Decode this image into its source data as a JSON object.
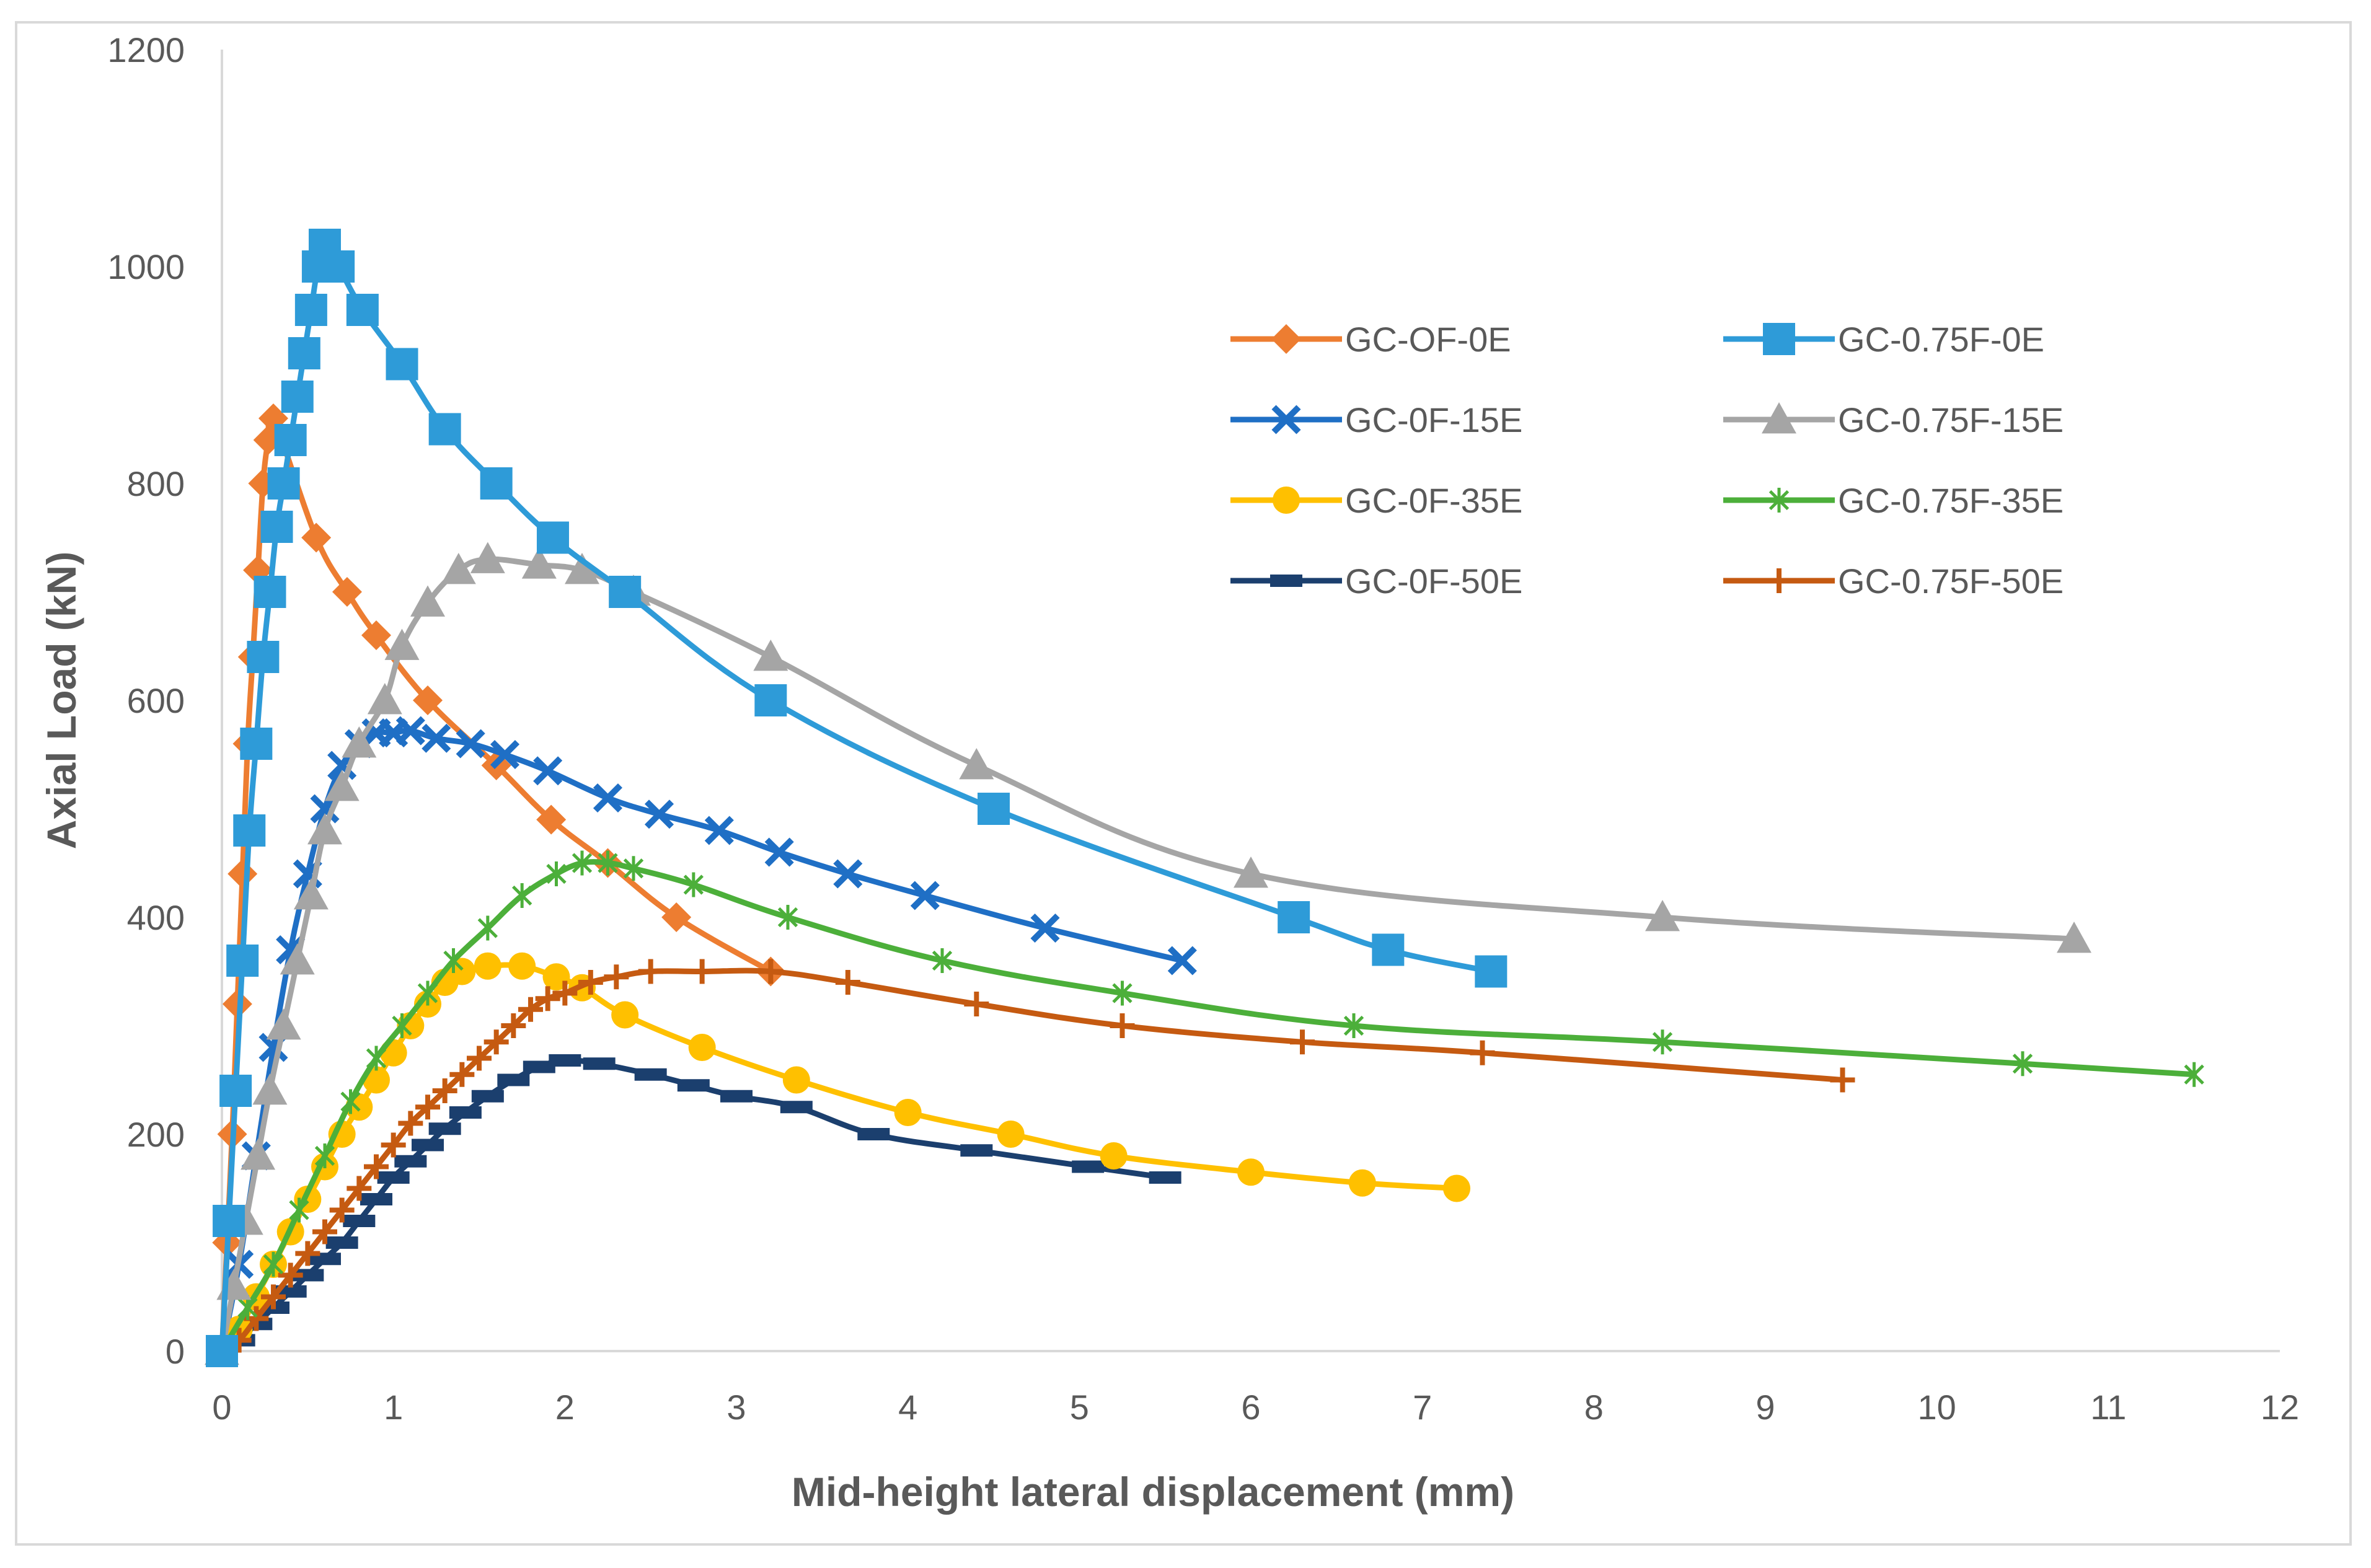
{
  "chart_data": {
    "type": "line",
    "title": "",
    "xlabel": "Mid-height lateral displacement (mm)",
    "ylabel": "Axial Load (kN)",
    "xlim": [
      0,
      12
    ],
    "ylim": [
      0,
      1200
    ],
    "xticks": [
      0,
      1,
      2,
      3,
      4,
      5,
      6,
      7,
      8,
      9,
      10,
      11,
      12
    ],
    "yticks": [
      0,
      200,
      400,
      600,
      800,
      1000,
      1200
    ],
    "grid": false,
    "legend_position": "top-right",
    "series": [
      {
        "name": "GC-OF-0E",
        "color": "#ED7D31",
        "marker": "diamond",
        "x": [
          0,
          0.03,
          0.06,
          0.09,
          0.12,
          0.15,
          0.18,
          0.21,
          0.24,
          0.27,
          0.3,
          0.55,
          0.73,
          0.9,
          1.2,
          1.6,
          1.92,
          2.25,
          2.65,
          3.2
        ],
        "y": [
          0,
          100,
          200,
          320,
          440,
          560,
          640,
          720,
          800,
          840,
          860,
          750,
          700,
          660,
          600,
          540,
          490,
          450,
          400,
          350
        ]
      },
      {
        "name": "GC-0.75F-0E",
        "color": "#2E9BD8",
        "marker": "square",
        "x": [
          0,
          0.04,
          0.08,
          0.12,
          0.16,
          0.2,
          0.24,
          0.28,
          0.32,
          0.36,
          0.4,
          0.44,
          0.48,
          0.52,
          0.56,
          0.6,
          0.68,
          0.82,
          1.05,
          1.3,
          1.6,
          1.93,
          2.35,
          3.2,
          4.5,
          6.25,
          6.8,
          7.4
        ],
        "y": [
          0,
          120,
          240,
          360,
          480,
          560,
          640,
          700,
          760,
          800,
          840,
          880,
          920,
          960,
          1000,
          1020,
          1000,
          960,
          910,
          850,
          800,
          750,
          700,
          600,
          500,
          400,
          370,
          350
        ]
      },
      {
        "name": "GC-0F-15E",
        "color": "#1F6FC5",
        "marker": "x",
        "x": [
          0,
          0.1,
          0.2,
          0.3,
          0.4,
          0.5,
          0.6,
          0.7,
          0.8,
          0.9,
          1.0,
          1.1,
          1.25,
          1.45,
          1.65,
          1.9,
          2.25,
          2.55,
          2.9,
          3.25,
          3.65,
          4.1,
          4.8,
          5.6
        ],
        "y": [
          0,
          80,
          180,
          280,
          370,
          440,
          500,
          540,
          560,
          570,
          570,
          572,
          565,
          560,
          550,
          535,
          510,
          495,
          480,
          460,
          440,
          420,
          390,
          360
        ]
      },
      {
        "name": "GC-0.75F-15E",
        "color": "#A5A5A5",
        "marker": "triangle",
        "x": [
          0,
          0.07,
          0.14,
          0.21,
          0.28,
          0.36,
          0.44,
          0.52,
          0.6,
          0.7,
          0.8,
          0.95,
          1.05,
          1.2,
          1.38,
          1.55,
          1.85,
          2.1,
          2.4,
          3.2,
          4.4,
          6.0,
          8.4,
          10.8
        ],
        "y": [
          0,
          60,
          120,
          180,
          240,
          300,
          360,
          420,
          480,
          520,
          560,
          600,
          650,
          690,
          720,
          730,
          725,
          720,
          700,
          640,
          540,
          440,
          400,
          380
        ]
      },
      {
        "name": "GC-0F-35E",
        "color": "#FFC000",
        "marker": "circle",
        "x": [
          0,
          0.1,
          0.2,
          0.3,
          0.4,
          0.5,
          0.6,
          0.7,
          0.8,
          0.9,
          1.0,
          1.1,
          1.2,
          1.3,
          1.4,
          1.55,
          1.75,
          1.95,
          2.1,
          2.35,
          2.8,
          3.35,
          4.0,
          4.6,
          5.2,
          6.0,
          6.65,
          7.2
        ],
        "y": [
          0,
          20,
          50,
          80,
          110,
          140,
          170,
          200,
          225,
          250,
          275,
          300,
          320,
          340,
          350,
          355,
          355,
          345,
          335,
          310,
          280,
          250,
          220,
          200,
          180,
          165,
          155,
          150
        ]
      },
      {
        "name": "GC-0.75F-35E",
        "color": "#4CAF3A",
        "marker": "asterisk",
        "x": [
          0,
          0.15,
          0.3,
          0.45,
          0.6,
          0.75,
          0.9,
          1.05,
          1.2,
          1.35,
          1.55,
          1.75,
          1.95,
          2.1,
          2.25,
          2.4,
          2.75,
          3.3,
          4.2,
          5.25,
          6.6,
          8.4,
          10.5,
          11.5
        ],
        "y": [
          0,
          40,
          80,
          130,
          180,
          230,
          270,
          300,
          330,
          360,
          390,
          420,
          440,
          450,
          450,
          445,
          430,
          400,
          360,
          330,
          300,
          285,
          265,
          255
        ]
      },
      {
        "name": "GC-0F-50E",
        "color": "#1B3F6E",
        "marker": "dash",
        "x": [
          0,
          0.1,
          0.2,
          0.3,
          0.4,
          0.5,
          0.6,
          0.7,
          0.8,
          0.9,
          1.0,
          1.1,
          1.2,
          1.3,
          1.42,
          1.55,
          1.7,
          1.85,
          2.0,
          2.2,
          2.5,
          2.75,
          3.0,
          3.35,
          3.8,
          4.4,
          5.05,
          5.5
        ],
        "y": [
          0,
          10,
          25,
          40,
          55,
          70,
          85,
          100,
          120,
          140,
          160,
          175,
          190,
          205,
          220,
          235,
          250,
          262,
          268,
          265,
          255,
          245,
          235,
          225,
          200,
          185,
          170,
          160
        ]
      },
      {
        "name": "GC-0.75F-50E",
        "color": "#C55A11",
        "marker": "plus",
        "x": [
          0,
          0.1,
          0.2,
          0.3,
          0.4,
          0.5,
          0.6,
          0.7,
          0.8,
          0.9,
          1.0,
          1.1,
          1.2,
          1.3,
          1.4,
          1.5,
          1.6,
          1.7,
          1.8,
          1.9,
          2.0,
          2.15,
          2.3,
          2.5,
          2.8,
          3.2,
          3.65,
          4.4,
          5.25,
          6.3,
          7.35,
          9.45
        ],
        "y": [
          0,
          10,
          30,
          50,
          70,
          90,
          110,
          130,
          150,
          170,
          190,
          210,
          225,
          240,
          255,
          270,
          285,
          300,
          315,
          325,
          330,
          340,
          345,
          350,
          350,
          350,
          340,
          320,
          300,
          285,
          275,
          250
        ]
      }
    ]
  }
}
